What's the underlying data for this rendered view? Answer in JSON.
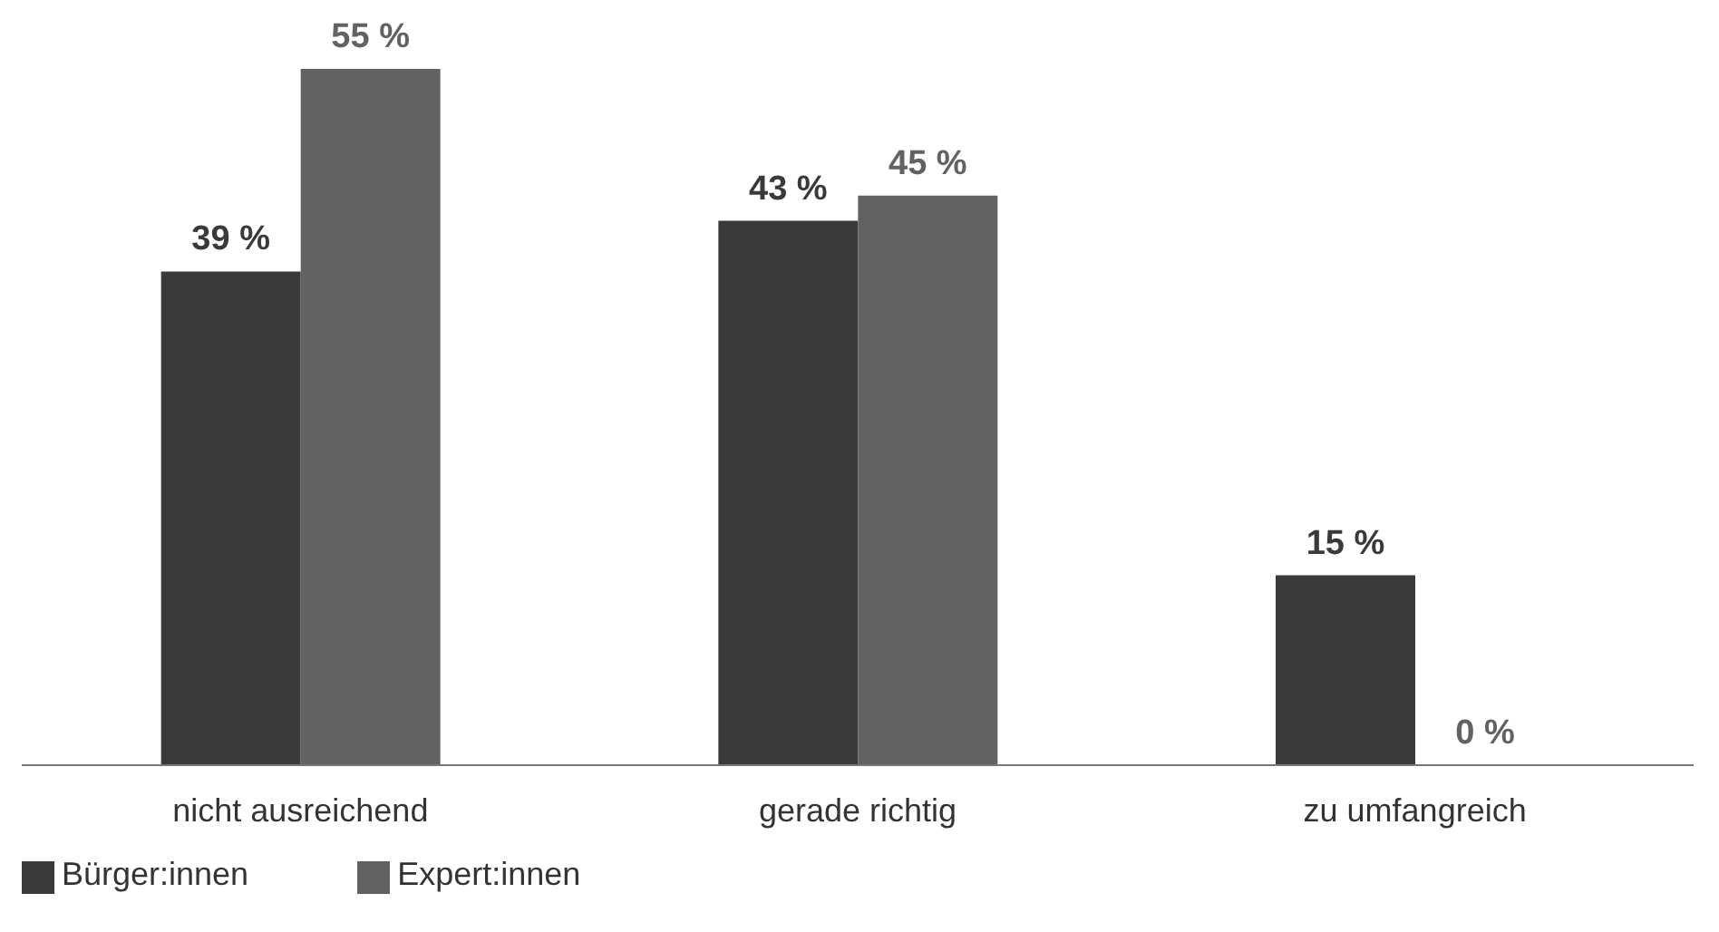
{
  "chart_data": {
    "type": "bar",
    "categories": [
      "nicht ausreichend",
      "gerade richtig",
      "zu umfangreich"
    ],
    "series": [
      {
        "name": "Bürger:innen",
        "color": "#3b3a39",
        "values": [
          39,
          43,
          15
        ],
        "value_labels": [
          "39 %",
          "43 %",
          "15 %"
        ]
      },
      {
        "name": "Expert:innen",
        "color": "#626262",
        "values": [
          55,
          45,
          0
        ],
        "value_labels": [
          "55 %",
          "45 %",
          "0 %"
        ]
      }
    ],
    "legend": "bottom left",
    "grid": false
  }
}
